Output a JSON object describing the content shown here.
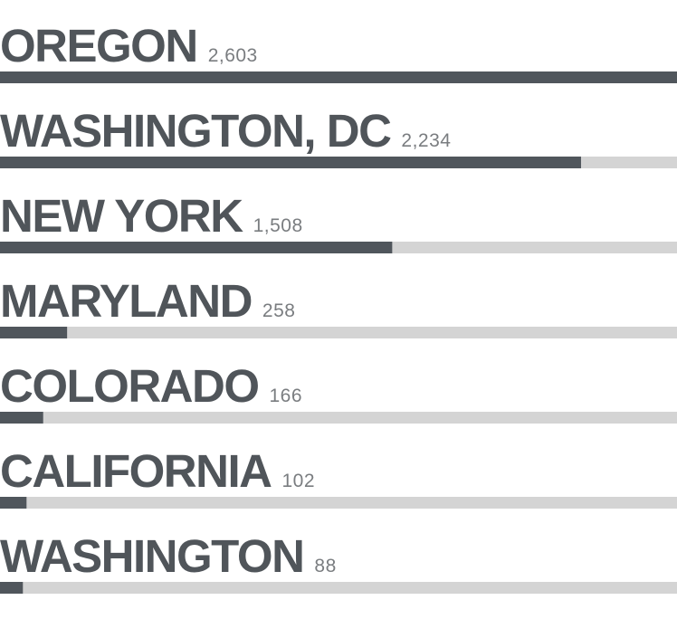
{
  "chart_data": {
    "type": "bar",
    "categories": [
      "OREGON",
      "WASHINGTON, DC",
      "NEW YORK",
      "MARYLAND",
      "COLORADO",
      "CALIFORNIA",
      "WASHINGTON"
    ],
    "values": [
      2603,
      2234,
      1508,
      258,
      166,
      102,
      88
    ],
    "value_labels": [
      "2,603",
      "2,234",
      "1,508",
      "258",
      "166",
      "102",
      "88"
    ],
    "color": "#50565c"
  }
}
